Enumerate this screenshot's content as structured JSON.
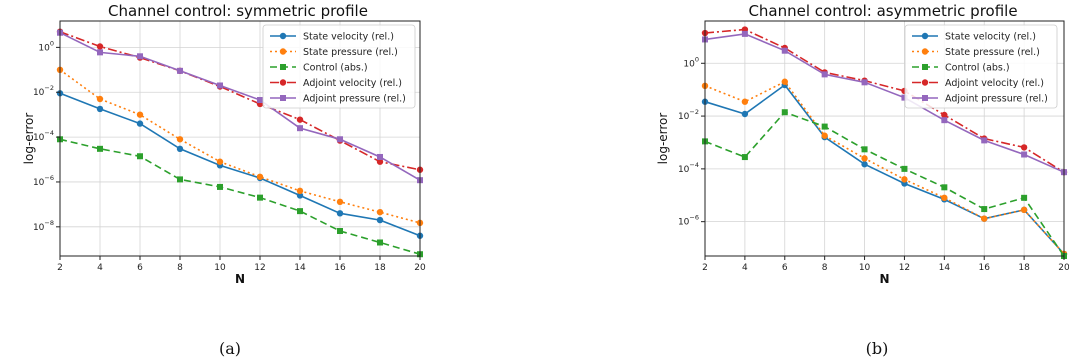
{
  "chart_data": [
    {
      "type": "line",
      "title": "Channel control: symmetric profile",
      "xlabel": "N",
      "ylabel": "log-error",
      "caption": "(a)",
      "yscale": "log",
      "grid": true,
      "legend_position": "top-right",
      "xlim": [
        2,
        20
      ],
      "ylim": [
        5e-10,
        15
      ],
      "xticks": [
        2,
        4,
        6,
        8,
        10,
        12,
        14,
        16,
        18,
        20
      ],
      "yticks": [
        {
          "exp": 0,
          "value": 1
        },
        {
          "exp": -2,
          "value": 0.01
        },
        {
          "exp": -4,
          "value": 0.0001
        },
        {
          "exp": -6,
          "value": 1e-06
        },
        {
          "exp": -8,
          "value": 1e-08
        }
      ],
      "x": [
        2,
        4,
        6,
        8,
        10,
        12,
        14,
        16,
        18,
        20
      ],
      "series": [
        {
          "name": "State velocity (rel.)",
          "color": "#1f77b4",
          "dash": "",
          "marker": "circle",
          "values": [
            0.009,
            0.0018,
            0.0004,
            3e-05,
            5.5e-06,
            1.5e-06,
            2.5e-07,
            4e-08,
            2e-08,
            4e-09
          ]
        },
        {
          "name": "State pressure (rel.)",
          "color": "#ff7f0e",
          "dash": "2,3",
          "marker": "circle",
          "values": [
            0.1,
            0.005,
            0.001,
            8e-05,
            8e-06,
            1.7e-06,
            4e-07,
            1.3e-07,
            4.5e-08,
            1.5e-08
          ]
        },
        {
          "name": "Control (abs.)",
          "color": "#2ca02c",
          "dash": "7,4",
          "marker": "square",
          "values": [
            8e-05,
            3e-05,
            1.4e-05,
            1.3e-06,
            6e-07,
            2e-07,
            5e-08,
            6.5e-09,
            2e-09,
            6e-10
          ]
        },
        {
          "name": "Adjoint velocity (rel.)",
          "color": "#d62728",
          "dash": "9,3,2,3",
          "marker": "circle",
          "values": [
            5,
            1.1,
            0.35,
            0.09,
            0.018,
            0.003,
            0.0006,
            7e-05,
            8e-06,
            3.5e-06
          ]
        },
        {
          "name": "Adjoint pressure (rel.)",
          "color": "#9467bd",
          "dash": "",
          "marker": "square",
          "values": [
            4.5,
            0.6,
            0.4,
            0.09,
            0.02,
            0.0045,
            0.00025,
            8e-05,
            1.3e-05,
            1.2e-06
          ]
        }
      ]
    },
    {
      "type": "line",
      "title": "Channel control: asymmetric profile",
      "xlabel": "N",
      "ylabel": "log-error",
      "caption": "(b)",
      "yscale": "log",
      "grid": true,
      "legend_position": "top-right",
      "xlim": [
        2,
        20
      ],
      "ylim": [
        5e-08,
        40
      ],
      "xticks": [
        2,
        4,
        6,
        8,
        10,
        12,
        14,
        16,
        18,
        20
      ],
      "yticks": [
        {
          "exp": 0,
          "value": 1
        },
        {
          "exp": -2,
          "value": 0.01
        },
        {
          "exp": -4,
          "value": 0.0001
        },
        {
          "exp": -6,
          "value": 1e-06
        }
      ],
      "x": [
        2,
        4,
        6,
        8,
        10,
        12,
        14,
        16,
        18,
        20
      ],
      "series": [
        {
          "name": "State velocity (rel.)",
          "color": "#1f77b4",
          "dash": "",
          "marker": "circle",
          "values": [
            0.035,
            0.012,
            0.15,
            0.0016,
            0.00015,
            2.8e-05,
            7e-06,
            1.3e-06,
            2.8e-06,
            6e-08
          ]
        },
        {
          "name": "State pressure (rel.)",
          "color": "#ff7f0e",
          "dash": "2,3",
          "marker": "circle",
          "values": [
            0.14,
            0.035,
            0.2,
            0.0018,
            0.00025,
            4e-05,
            8e-06,
            1.3e-06,
            2.8e-06,
            6e-08
          ]
        },
        {
          "name": "Control (abs.)",
          "color": "#2ca02c",
          "dash": "7,4",
          "marker": "square",
          "values": [
            0.0011,
            0.00028,
            0.014,
            0.004,
            0.00055,
            0.0001,
            2e-05,
            3e-06,
            8e-06,
            5e-08
          ]
        },
        {
          "name": "Adjoint velocity (rel.)",
          "color": "#d62728",
          "dash": "9,3,2,3",
          "marker": "circle",
          "values": [
            14,
            19,
            3.8,
            0.45,
            0.22,
            0.09,
            0.011,
            0.0014,
            0.00065,
            7.5e-05
          ]
        },
        {
          "name": "Adjoint pressure (rel.)",
          "color": "#9467bd",
          "dash": "",
          "marker": "square",
          "values": [
            8,
            13,
            3,
            0.38,
            0.19,
            0.05,
            0.007,
            0.0012,
            0.00035,
            7.5e-05
          ]
        }
      ]
    }
  ]
}
